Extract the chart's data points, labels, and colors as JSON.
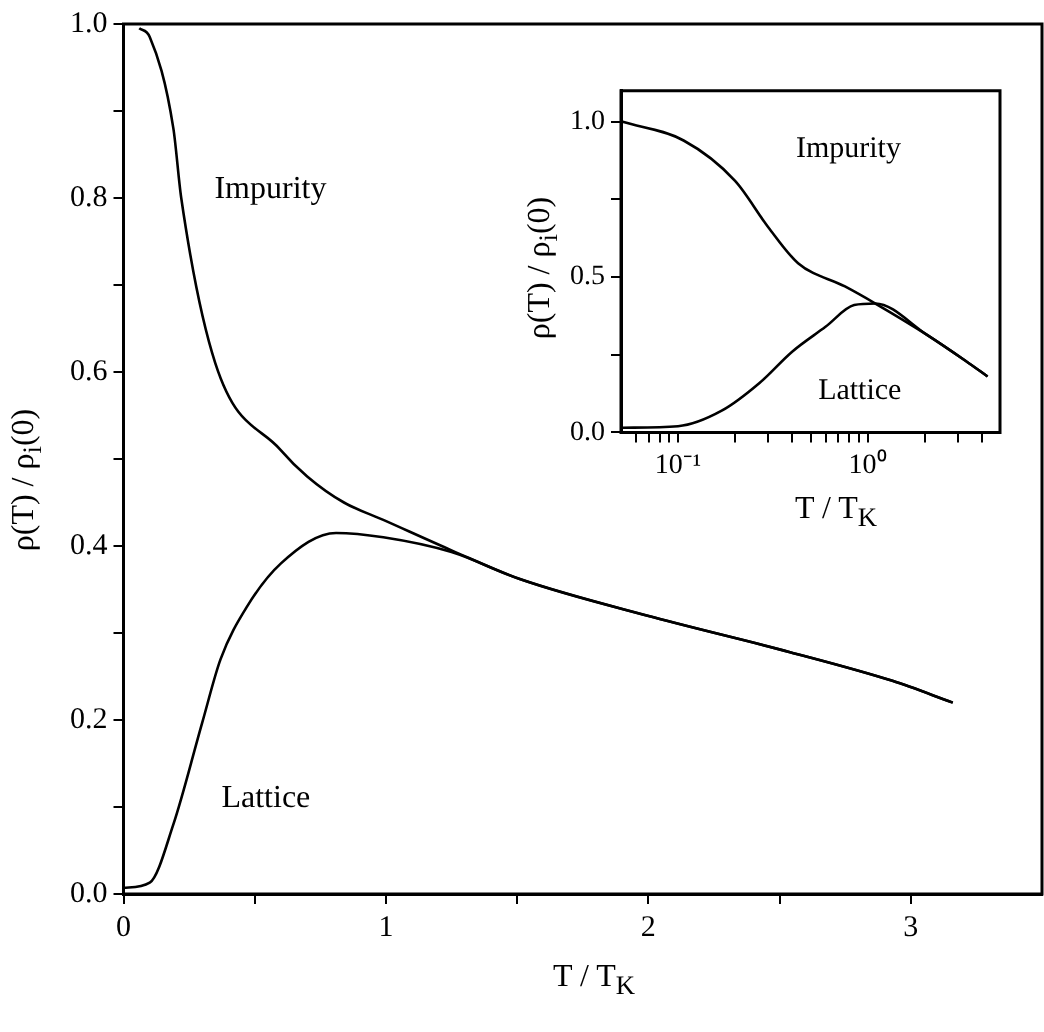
{
  "chart_data": [
    {
      "type": "line",
      "xlabel": "T / T$_{K}$",
      "ylabel": "ρ(T) / ρ$_{i}$(0)",
      "xlim": [
        0,
        3.5
      ],
      "xticks": [
        0,
        {
          "value": 0.5,
          "label": null
        },
        1,
        {
          "value": 1.5,
          "label": null
        },
        2,
        {
          "value": 2.5,
          "label": null
        },
        3
      ],
      "ylim": [
        0,
        1
      ],
      "yticks": [
        {
          "value": 0,
          "label": "0.0"
        },
        {
          "value": 0.1,
          "label": null
        },
        {
          "value": 0.2,
          "label": "0.2"
        },
        {
          "value": 0.3,
          "label": null
        },
        {
          "value": 0.4,
          "label": "0.4"
        },
        {
          "value": 0.5,
          "label": null
        },
        {
          "value": 0.6,
          "label": "0.6"
        },
        {
          "value": 0.7,
          "label": null
        },
        {
          "value": 0.8,
          "label": "0.8"
        },
        {
          "value": 0.9,
          "label": null
        },
        {
          "value": 1,
          "label": "1.0"
        }
      ],
      "marker": "none",
      "grid": false,
      "series": [
        {
          "name": "Impurity",
          "color": "#000000",
          "x": [
            0.06,
            0.1,
            0.19,
            0.22,
            0.35,
            0.6,
            0.7,
            0.84,
            0.99,
            1.25,
            1.51,
            2.02,
            2.54,
            2.93,
            3.16
          ],
          "values": [
            0.995,
            0.985,
            0.88,
            0.8,
            0.61,
            0.51,
            0.48,
            0.45,
            0.43,
            0.395,
            0.362,
            0.318,
            0.278,
            0.245,
            0.22
          ]
        },
        {
          "name": "Lattice",
          "color": "#000000",
          "x": [
            0,
            0.1,
            0.19,
            0.3,
            0.37,
            0.47,
            0.6,
            0.81,
            0.99,
            1.25,
            1.51,
            2.02,
            2.54,
            2.93,
            3.16
          ],
          "values": [
            0.007,
            0.013,
            0.08,
            0.197,
            0.27,
            0.33,
            0.38,
            0.415,
            0.41,
            0.393,
            0.362,
            0.318,
            0.278,
            0.245,
            0.22
          ]
        }
      ]
    },
    {
      "type": "line",
      "xlabel": "T / T$_{K}$",
      "ylabel": "ρ(T) / ρ$_{i}$(0)",
      "log": "x",
      "xlim": [
        0.05,
        5
      ],
      "xticks": [
        {
          "value": 0.06,
          "label": null
        },
        {
          "value": 0.07,
          "label": null
        },
        {
          "value": 0.08,
          "label": null
        },
        {
          "value": 0.09,
          "label": null
        },
        {
          "value": 0.1,
          "label": "10⁻¹"
        },
        {
          "value": 0.2,
          "label": null
        },
        {
          "value": 0.3,
          "label": null
        },
        {
          "value": 0.4,
          "label": null
        },
        {
          "value": 0.5,
          "label": null
        },
        {
          "value": 0.6,
          "label": null
        },
        {
          "value": 0.7,
          "label": null
        },
        {
          "value": 0.8,
          "label": null
        },
        {
          "value": 0.9,
          "label": null
        },
        {
          "value": 1,
          "label": "10⁰"
        },
        {
          "value": 2,
          "label": null
        },
        {
          "value": 3,
          "label": null
        },
        {
          "value": 4,
          "label": null
        }
      ],
      "ylim": [
        0,
        1.1
      ],
      "yticks": [
        {
          "value": 0,
          "label": "0.0"
        },
        {
          "value": 0.25,
          "label": null
        },
        {
          "value": 0.5,
          "label": "0.5"
        },
        {
          "value": 0.75,
          "label": null
        },
        {
          "value": 1,
          "label": "1.0"
        }
      ],
      "marker": "none",
      "grid": false,
      "series": [
        {
          "name": "Impurity",
          "color": "#000000",
          "x": [
            0.051,
            0.107,
            0.2,
            0.3,
            0.43,
            0.76,
            1.1,
            2.05,
            3.3,
            4.3
          ],
          "values": [
            1.0,
            0.94,
            0.81,
            0.66,
            0.545,
            0.47,
            0.415,
            0.315,
            0.23,
            0.18
          ]
        },
        {
          "name": "Lattice",
          "color": "#000000",
          "x": [
            0.051,
            0.1,
            0.17,
            0.27,
            0.4,
            0.6,
            0.85,
            1.1,
            2.05,
            3.3,
            4.3
          ],
          "values": [
            0.015,
            0.02,
            0.07,
            0.16,
            0.26,
            0.34,
            0.41,
            0.415,
            0.315,
            0.23,
            0.18
          ]
        }
      ]
    }
  ]
}
